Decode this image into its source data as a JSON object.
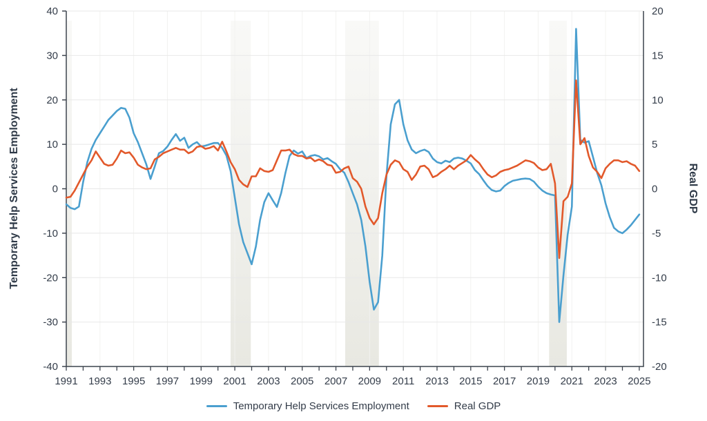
{
  "colors": {
    "band": "#e7e7e0",
    "grid_h": "#e8e8e8",
    "grid_v": "#f2f2f0",
    "axis": "#3c434d",
    "text": "#333c49",
    "blue": "#4a9fcf",
    "orange": "#e2592b"
  },
  "chart_data": {
    "type": "line",
    "x_start": 1991,
    "x_step": 0.25,
    "x_axis": {
      "min": 1991,
      "max": 2025.25,
      "labeled_ticks": [
        1991,
        1993,
        1995,
        1997,
        1999,
        2001,
        2003,
        2005,
        2007,
        2009,
        2011,
        2013,
        2015,
        2017,
        2019,
        2021,
        2023,
        2025
      ],
      "minor_tick_step": 1
    },
    "left_axis": {
      "label": "Temporary Help Services Employment",
      "min": -40,
      "max": 40,
      "ticks": [
        40,
        30,
        20,
        10,
        0,
        -10,
        -20,
        -30,
        -40
      ]
    },
    "right_axis": {
      "label": "Real GDP",
      "min": -20,
      "max": 20,
      "ticks": [
        20,
        15,
        10,
        5,
        0,
        -5,
        -10,
        -15,
        -20
      ]
    },
    "grid": {
      "horizontal": true,
      "vertical": true
    },
    "legend": {
      "position": "bottom"
    },
    "recession_bands": [
      [
        1991.0,
        1991.33
      ],
      [
        2000.75,
        2001.95
      ],
      [
        2007.55,
        2009.55
      ],
      [
        2019.65,
        2020.7
      ]
    ],
    "series": [
      {
        "name": "Temporary Help Services Employment",
        "axis": "left",
        "color": "#4a9fcf",
        "values": [
          -3.5,
          -4.3,
          -4.6,
          -4.0,
          1.5,
          6.0,
          9.0,
          11.0,
          12.5,
          14.0,
          15.5,
          16.5,
          17.5,
          18.2,
          18.0,
          16.0,
          12.5,
          10.5,
          8.0,
          5.5,
          2.2,
          5.0,
          8.0,
          8.5,
          9.5,
          11.0,
          12.3,
          10.8,
          11.5,
          9.2,
          10.0,
          10.5,
          9.5,
          9.7,
          10.0,
          10.3,
          10.3,
          9.2,
          7.5,
          4.0,
          -2.0,
          -8.0,
          -12.0,
          -14.5,
          -17.0,
          -13.0,
          -7.0,
          -3.0,
          -1.0,
          -2.6,
          -4.1,
          -1.0,
          3.5,
          7.4,
          8.6,
          7.9,
          8.4,
          6.9,
          7.4,
          7.6,
          7.3,
          6.6,
          6.9,
          6.2,
          5.6,
          4.4,
          3.6,
          1.5,
          -1.0,
          -3.5,
          -7.0,
          -13.0,
          -21.0,
          -27.2,
          -25.5,
          -15.0,
          3.0,
          14.5,
          19.0,
          20.0,
          14.5,
          10.9,
          8.8,
          8.0,
          8.5,
          8.8,
          8.3,
          6.8,
          6.0,
          5.7,
          6.3,
          6.0,
          6.8,
          7.0,
          6.8,
          6.3,
          5.7,
          4.2,
          3.3,
          1.9,
          0.6,
          -0.3,
          -0.6,
          -0.4,
          0.6,
          1.3,
          1.8,
          2.0,
          2.2,
          2.3,
          2.2,
          1.6,
          0.5,
          -0.4,
          -1.0,
          -1.3,
          -1.5,
          -30.0,
          -19.5,
          -10.3,
          -4.0,
          36.0,
          11.0,
          10.4,
          10.7,
          7.2,
          3.6,
          0.8,
          -3.3,
          -6.4,
          -8.8,
          -9.6,
          -10.0,
          -9.2,
          -8.2,
          -7.0,
          -5.8
        ]
      },
      {
        "name": "Real GDP",
        "axis": "right",
        "color": "#e2592b",
        "values": [
          -1.0,
          -0.9,
          -0.2,
          0.7,
          1.6,
          2.5,
          3.2,
          4.2,
          3.5,
          2.8,
          2.6,
          2.7,
          3.4,
          4.3,
          4.0,
          4.1,
          3.5,
          2.7,
          2.4,
          2.2,
          2.3,
          3.3,
          3.6,
          4.0,
          4.2,
          4.4,
          4.6,
          4.4,
          4.4,
          4.0,
          4.2,
          4.7,
          4.8,
          4.5,
          4.6,
          4.8,
          4.3,
          5.3,
          4.2,
          3.0,
          2.2,
          1.0,
          0.5,
          0.2,
          1.4,
          1.4,
          2.3,
          2.0,
          1.9,
          2.1,
          3.2,
          4.3,
          4.3,
          4.4,
          3.9,
          3.7,
          3.7,
          3.4,
          3.5,
          3.1,
          3.3,
          3.1,
          2.7,
          2.6,
          1.8,
          1.9,
          2.3,
          2.5,
          1.2,
          0.8,
          0.0,
          -2.0,
          -3.3,
          -4.0,
          -3.3,
          -0.5,
          1.6,
          2.7,
          3.2,
          3.0,
          2.2,
          1.9,
          1.0,
          1.6,
          2.5,
          2.6,
          2.2,
          1.3,
          1.5,
          1.9,
          2.2,
          2.6,
          2.2,
          2.6,
          2.9,
          3.2,
          3.8,
          3.3,
          2.9,
          2.2,
          1.6,
          1.3,
          1.5,
          1.9,
          2.1,
          2.2,
          2.4,
          2.6,
          2.9,
          3.2,
          3.1,
          2.9,
          2.4,
          2.1,
          2.2,
          2.8,
          0.6,
          -7.8,
          -1.4,
          -0.9,
          0.6,
          12.2,
          5.0,
          5.7,
          3.7,
          2.4,
          1.9,
          1.2,
          2.3,
          2.8,
          3.2,
          3.2,
          3.0,
          3.1,
          2.8,
          2.6,
          2.0
        ]
      }
    ]
  }
}
